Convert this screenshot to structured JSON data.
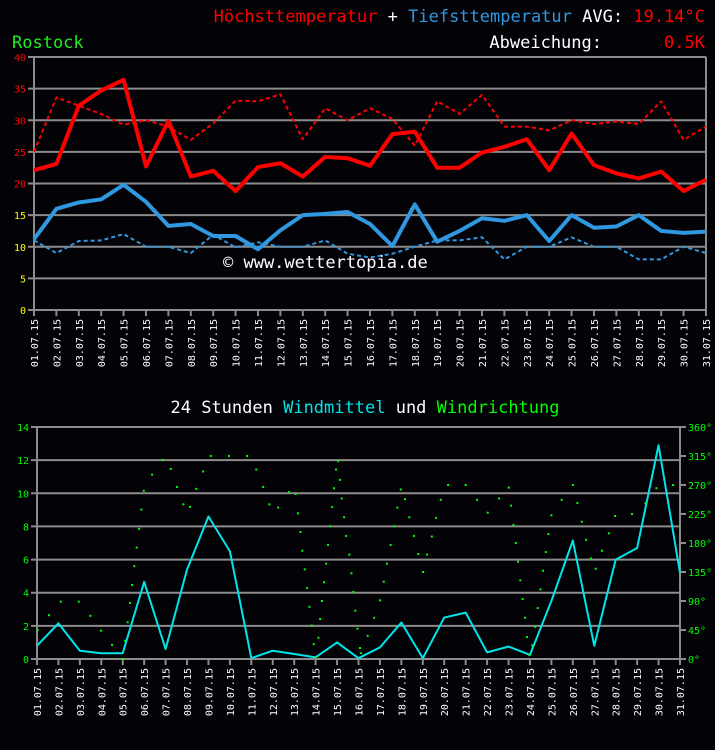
{
  "header": {
    "max_label": "Höchsttemperatur",
    "plus": "+",
    "min_label": "Tiefsttemperatur",
    "avg_label": "AVG:",
    "avg_value": "19.14°C",
    "location": "Rostock",
    "deviation_label": "Abweichung:",
    "deviation_value": "0.5K"
  },
  "wind_title": {
    "part1": "24 Stunden",
    "part2": "Windmittel",
    "part3": "und",
    "part4": "Windrichtung"
  },
  "watermark": "© www.wettertopia.de",
  "colors": {
    "max": "#ff0000",
    "min": "#2f98e0",
    "wind": "#00e5ea",
    "direction": "#00ff00",
    "grid": "#8c8c8c",
    "tick_high": "#ff0000",
    "tick_low": "#ffff00"
  },
  "chart_data": [
    {
      "type": "line",
      "title": "Höchsttemperatur + Tiefsttemperatur",
      "categories": [
        "01.07.15",
        "02.07.15",
        "03.07.15",
        "04.07.15",
        "05.07.15",
        "06.07.15",
        "07.07.15",
        "08.07.15",
        "09.07.15",
        "10.07.15",
        "11.07.15",
        "12.07.15",
        "13.07.15",
        "14.07.15",
        "15.07.15",
        "16.07.15",
        "17.07.15",
        "18.07.15",
        "19.07.15",
        "20.07.15",
        "21.07.15",
        "22.07.15",
        "23.07.15",
        "24.07.15",
        "25.07.15",
        "26.07.15",
        "27.07.15",
        "28.07.15",
        "29.07.15",
        "30.07.15",
        "31.07.15"
      ],
      "ylim": [
        0,
        40
      ],
      "yticks": [
        0,
        5,
        10,
        15,
        20,
        25,
        30,
        35,
        40
      ],
      "grid": true,
      "series": [
        {
          "name": "Höchsttemperatur",
          "style": "solid",
          "color": "#ff0000",
          "values": [
            22.1,
            23.1,
            32.3,
            34.7,
            36.4,
            22.7,
            29.9,
            21.1,
            22.0,
            18.8,
            22.6,
            23.2,
            21.1,
            24.2,
            24.0,
            22.8,
            27.8,
            28.2,
            22.5,
            22.5,
            24.9,
            25.8,
            27.0,
            22.1,
            27.9,
            22.9,
            21.6,
            20.8,
            21.9,
            18.8,
            20.6
          ]
        },
        {
          "style": "dashed",
          "color": "#ff0000",
          "values": [
            25.0,
            33.6,
            32.3,
            31.0,
            29.3,
            30.0,
            29.0,
            26.9,
            29.5,
            33.1,
            33.0,
            34.1,
            27.0,
            31.9,
            30.0,
            31.9,
            30.2,
            26.0,
            33.0,
            31.0,
            34.0,
            29.0,
            29.0,
            28.4,
            30.0,
            29.4,
            29.8,
            29.4,
            33.0,
            26.9,
            29.0
          ]
        },
        {
          "name": "Tiefsttemperatur",
          "style": "solid",
          "color": "#2f98e0",
          "values": [
            11.2,
            16.0,
            17.0,
            17.5,
            19.8,
            17.1,
            13.3,
            13.6,
            11.7,
            11.7,
            9.6,
            12.6,
            15.0,
            15.2,
            15.5,
            13.6,
            10.1,
            16.7,
            10.8,
            12.5,
            14.5,
            14.1,
            15.0,
            10.9,
            15.0,
            13.0,
            13.2,
            15.0,
            12.5,
            12.2,
            12.4
          ]
        },
        {
          "style": "dashed",
          "color": "#2f98e0",
          "values": [
            11.0,
            9.0,
            10.9,
            11.0,
            12.0,
            10.0,
            10.0,
            9.0,
            11.9,
            9.9,
            10.7,
            10.0,
            10.0,
            11.0,
            8.9,
            8.3,
            8.9,
            10.0,
            11.0,
            11.0,
            11.5,
            8.0,
            10.0,
            10.0,
            11.5,
            10.0,
            10.0,
            8.0,
            8.0,
            10.0,
            9.0
          ]
        }
      ]
    },
    {
      "type": "line",
      "title": "24 Stunden Windmittel und Windrichtung",
      "categories": [
        "01.07.15",
        "02.07.15",
        "03.07.15",
        "04.07.15",
        "05.07.15",
        "06.07.15",
        "07.07.15",
        "08.07.15",
        "09.07.15",
        "10.07.15",
        "11.07.15",
        "12.07.15",
        "13.07.15",
        "14.07.15",
        "15.07.15",
        "16.07.15",
        "17.07.15",
        "18.07.15",
        "19.07.15",
        "20.07.15",
        "21.07.15",
        "22.07.15",
        "23.07.15",
        "24.07.15",
        "25.07.15",
        "26.07.15",
        "27.07.15",
        "28.07.15",
        "29.07.15",
        "30.07.15",
        "31.07.15"
      ],
      "ylim": [
        0,
        14
      ],
      "yticks": [
        0,
        2,
        4,
        6,
        8,
        10,
        12,
        14
      ],
      "y2lim": [
        0,
        360
      ],
      "y2ticks": [
        "0°",
        "45°",
        "90°",
        "135°",
        "180°",
        "225°",
        "270°",
        "315°",
        "360°"
      ],
      "grid": true,
      "series": [
        {
          "name": "Windmittel",
          "style": "solid",
          "color": "#00e5ea",
          "values": [
            0.8,
            2.15,
            0.5,
            0.35,
            0.35,
            4.65,
            0.6,
            5.4,
            8.6,
            6.5,
            0.05,
            0.5,
            0.3,
            0.1,
            1.0,
            0.05,
            0.7,
            2.2,
            0.05,
            2.5,
            2.8,
            0.4,
            0.75,
            0.25,
            3.5,
            7.15,
            0.8,
            6.0,
            6.7,
            12.9,
            5.2
          ]
        },
        {
          "name": "Windrichtung",
          "type": "scatter",
          "axis": "y2",
          "color": "#00ff00",
          "points": [
            [
              1.03,
              45
            ],
            [
              1.56,
              68
            ],
            [
              2.11,
              89
            ],
            [
              2.95,
              89
            ],
            [
              3.49,
              67
            ],
            [
              3.99,
              44
            ],
            [
              4.5,
              22
            ],
            [
              5.01,
              0
            ],
            [
              5.11,
              28
            ],
            [
              5.23,
              57
            ],
            [
              5.34,
              87
            ],
            [
              5.43,
              115
            ],
            [
              5.54,
              144
            ],
            [
              5.65,
              173
            ],
            [
              5.76,
              202
            ],
            [
              5.87,
              232
            ],
            [
              5.98,
              261
            ],
            [
              6.37,
              286
            ],
            [
              6.87,
              309
            ],
            [
              7.24,
              295
            ],
            [
              7.53,
              267
            ],
            [
              7.83,
              240
            ],
            [
              8.14,
              236
            ],
            [
              8.43,
              264
            ],
            [
              8.75,
              291
            ],
            [
              9.11,
              315
            ],
            [
              9.96,
              315
            ],
            [
              10.8,
              315
            ],
            [
              11.23,
              294
            ],
            [
              11.55,
              267
            ],
            [
              11.84,
              240
            ],
            [
              12.25,
              235
            ],
            [
              12.76,
              259
            ],
            [
              13.07,
              256
            ],
            [
              13.18,
              226
            ],
            [
              13.29,
              197
            ],
            [
              13.38,
              168
            ],
            [
              13.49,
              139
            ],
            [
              13.6,
              110
            ],
            [
              13.71,
              81
            ],
            [
              13.82,
              52
            ],
            [
              13.91,
              23
            ],
            [
              14.02,
              3
            ],
            [
              14.13,
              33
            ],
            [
              14.21,
              62
            ],
            [
              14.3,
              90
            ],
            [
              14.39,
              119
            ],
            [
              14.49,
              148
            ],
            [
              14.58,
              177
            ],
            [
              14.67,
              206
            ],
            [
              14.77,
              236
            ],
            [
              14.86,
              265
            ],
            [
              14.95,
              294
            ],
            [
              15.05,
              307
            ],
            [
              15.13,
              278
            ],
            [
              15.22,
              249
            ],
            [
              15.33,
              220
            ],
            [
              15.42,
              191
            ],
            [
              15.57,
              162
            ],
            [
              15.67,
              133
            ],
            [
              15.76,
              104
            ],
            [
              15.85,
              75
            ],
            [
              15.95,
              47
            ],
            [
              16.07,
              17
            ],
            [
              16.12,
              9
            ],
            [
              16.43,
              36
            ],
            [
              16.73,
              64
            ],
            [
              17.01,
              91
            ],
            [
              17.18,
              120
            ],
            [
              17.33,
              148
            ],
            [
              17.5,
              177
            ],
            [
              17.66,
              206
            ],
            [
              17.81,
              235
            ],
            [
              17.97,
              263
            ],
            [
              18.17,
              248
            ],
            [
              18.37,
              220
            ],
            [
              18.59,
              191
            ],
            [
              18.79,
              163
            ],
            [
              19.01,
              135
            ],
            [
              19.2,
              162
            ],
            [
              19.42,
              190
            ],
            [
              19.62,
              219
            ],
            [
              19.84,
              247
            ],
            [
              20.18,
              270
            ],
            [
              21.0,
              270
            ],
            [
              21.53,
              247
            ],
            [
              22.03,
              227
            ],
            [
              22.56,
              249
            ],
            [
              23.01,
              266
            ],
            [
              23.12,
              238
            ],
            [
              23.23,
              208
            ],
            [
              23.34,
              180
            ],
            [
              23.44,
              151
            ],
            [
              23.55,
              122
            ],
            [
              23.66,
              93
            ],
            [
              23.77,
              64
            ],
            [
              23.86,
              34
            ],
            [
              23.97,
              6
            ],
            [
              24.1,
              21
            ],
            [
              24.24,
              50
            ],
            [
              24.36,
              79
            ],
            [
              24.49,
              108
            ],
            [
              24.61,
              137
            ],
            [
              24.74,
              166
            ],
            [
              24.86,
              194
            ],
            [
              25.0,
              223
            ],
            [
              25.48,
              247
            ],
            [
              26.0,
              270
            ],
            [
              26.21,
              242
            ],
            [
              26.42,
              213
            ],
            [
              26.62,
              185
            ],
            [
              26.84,
              156
            ],
            [
              27.07,
              140
            ],
            [
              27.36,
              168
            ],
            [
              27.68,
              195
            ],
            [
              27.97,
              222
            ],
            [
              28.76,
              225
            ],
            [
              29.39,
              242
            ],
            [
              29.9,
              265
            ],
            [
              30.68,
              270
            ]
          ]
        }
      ]
    }
  ]
}
